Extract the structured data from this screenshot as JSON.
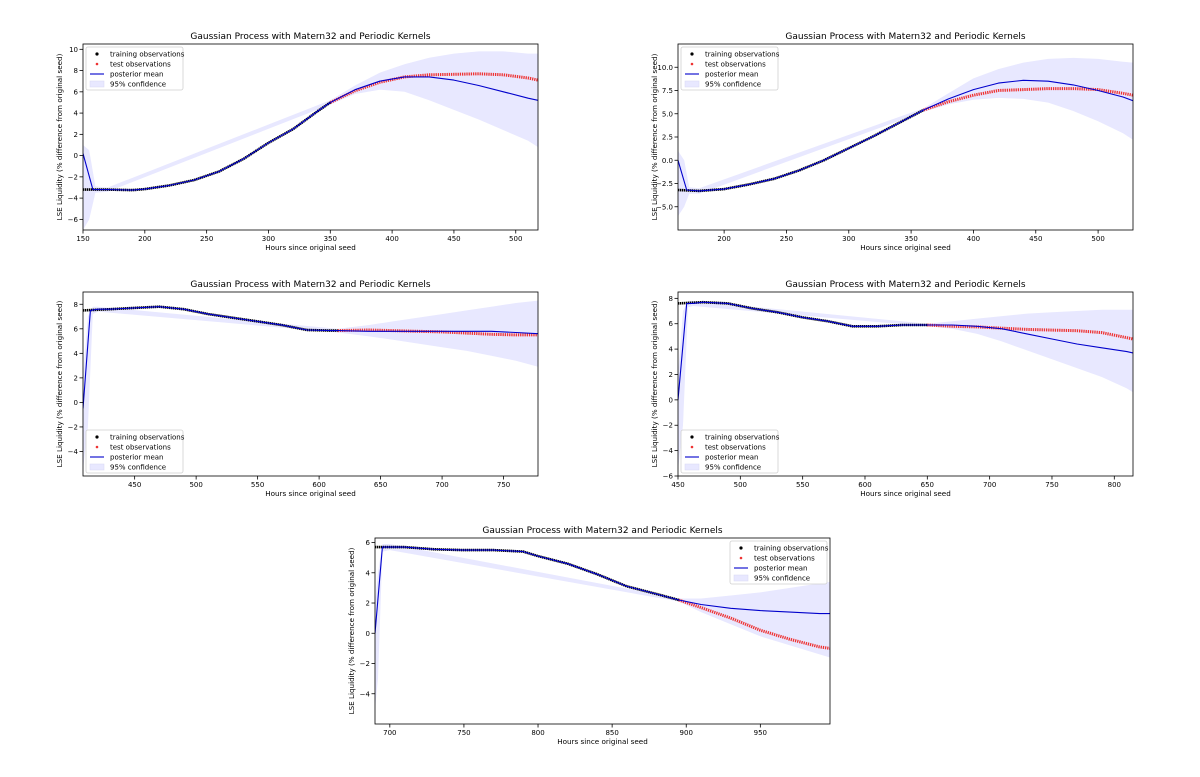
{
  "figure": {
    "background": "#ffffff",
    "colors": {
      "training": "#000000",
      "test": "#ee3333",
      "mean": "#0000cc",
      "confidence": "#e8e8ff"
    }
  },
  "chart_data": [
    {
      "type": "line",
      "title": "Gaussian Process with Matern32 and Periodic Kernels",
      "xlabel": "Hours since original seed",
      "ylabel": "LSE Liquidity (% difference from original seed)",
      "xlim": [
        150,
        518
      ],
      "ylim": [
        -7,
        10.5
      ],
      "xticks": [
        150,
        200,
        250,
        300,
        350,
        400,
        450,
        500
      ],
      "yticks": [
        -6,
        -4,
        -2,
        0,
        2,
        4,
        6,
        8,
        10
      ],
      "ytick_labels": [
        "−6",
        "−4",
        "−2",
        "0",
        "2",
        "4",
        "6",
        "8",
        "10"
      ],
      "legend": [
        "training observations",
        "test observations",
        "posterior mean",
        "95% confidence"
      ],
      "legend_position": "upper-left",
      "grid": false,
      "series": {
        "training": {
          "x": [
            150,
            170,
            190,
            200,
            220,
            240,
            260,
            280,
            300,
            320,
            340,
            350
          ],
          "y": [
            -3.2,
            -3.2,
            -3.25,
            -3.15,
            -2.8,
            -2.3,
            -1.5,
            -0.3,
            1.2,
            2.5,
            4.2,
            5.0
          ]
        },
        "test": {
          "x": [
            350,
            370,
            390,
            410,
            430,
            450,
            470,
            490,
            510,
            518
          ],
          "y": [
            5.0,
            6.1,
            6.9,
            7.4,
            7.6,
            7.65,
            7.7,
            7.6,
            7.3,
            7.1
          ]
        },
        "mean": {
          "x": [
            150,
            158,
            170,
            190,
            200,
            220,
            240,
            260,
            280,
            300,
            320,
            340,
            350,
            370,
            390,
            410,
            430,
            450,
            470,
            490,
            510,
            518
          ],
          "y": [
            0.2,
            -3.2,
            -3.2,
            -3.25,
            -3.15,
            -2.8,
            -2.3,
            -1.5,
            -0.3,
            1.2,
            2.5,
            4.2,
            5.0,
            6.2,
            7.0,
            7.4,
            7.4,
            7.1,
            6.6,
            6.0,
            5.4,
            5.2
          ]
        },
        "band": {
          "x": [
            150,
            155,
            160,
            170,
            350,
            370,
            390,
            410,
            430,
            450,
            470,
            490,
            510,
            518
          ],
          "upper": [
            1.0,
            0.5,
            -2.9,
            -3.0,
            5.2,
            6.6,
            7.8,
            8.6,
            9.2,
            9.6,
            9.8,
            9.8,
            9.6,
            9.6
          ],
          "lower": [
            -7.0,
            -6.0,
            -3.5,
            -3.4,
            4.8,
            5.8,
            6.2,
            6.0,
            5.2,
            4.3,
            3.4,
            2.4,
            1.4,
            0.8
          ]
        }
      }
    },
    {
      "type": "line",
      "title": "Gaussian Process with Matern32 and Periodic Kernels",
      "xlabel": "Hours since original seed",
      "ylabel": "LSE Liquidity (% difference from original seed)",
      "xlim": [
        163,
        528
      ],
      "ylim": [
        -7.5,
        12.5
      ],
      "xticks": [
        200,
        250,
        300,
        350,
        400,
        450,
        500
      ],
      "yticks": [
        -5.0,
        -2.5,
        0.0,
        2.5,
        5.0,
        7.5,
        10.0
      ],
      "ytick_labels": [
        "−5.0",
        "−2.5",
        "0.0",
        "2.5",
        "5.0",
        "7.5",
        "10.0"
      ],
      "legend": [
        "training observations",
        "test observations",
        "posterior mean",
        "95% confidence"
      ],
      "legend_position": "upper-left",
      "grid": false,
      "series": {
        "training": {
          "x": [
            163,
            180,
            200,
            220,
            240,
            260,
            280,
            300,
            320,
            340,
            360
          ],
          "y": [
            -3.2,
            -3.3,
            -3.1,
            -2.6,
            -2.0,
            -1.1,
            0.0,
            1.3,
            2.6,
            4.0,
            5.4
          ]
        },
        "test": {
          "x": [
            360,
            380,
            400,
            420,
            440,
            460,
            480,
            500,
            520,
            528
          ],
          "y": [
            5.4,
            6.3,
            7.0,
            7.5,
            7.6,
            7.7,
            7.7,
            7.6,
            7.2,
            7.0
          ]
        },
        "mean": {
          "x": [
            163,
            170,
            180,
            200,
            220,
            240,
            260,
            280,
            300,
            320,
            340,
            360,
            380,
            400,
            420,
            440,
            460,
            480,
            500,
            520,
            528
          ],
          "y": [
            0.0,
            -3.2,
            -3.3,
            -3.1,
            -2.6,
            -2.0,
            -1.1,
            0.0,
            1.3,
            2.6,
            4.0,
            5.4,
            6.6,
            7.6,
            8.3,
            8.6,
            8.5,
            8.1,
            7.5,
            6.8,
            6.4
          ]
        },
        "band": {
          "x": [
            163,
            168,
            172,
            180,
            360,
            380,
            400,
            420,
            440,
            460,
            480,
            500,
            520,
            528
          ],
          "upper": [
            1.0,
            0.0,
            -2.9,
            -3.0,
            5.6,
            7.2,
            8.8,
            9.8,
            10.5,
            10.9,
            11.0,
            10.9,
            10.6,
            10.5
          ],
          "lower": [
            -6.0,
            -5.0,
            -3.6,
            -3.6,
            5.2,
            6.0,
            6.5,
            6.7,
            6.6,
            6.2,
            5.3,
            4.2,
            2.9,
            2.2
          ]
        }
      }
    },
    {
      "type": "line",
      "title": "Gaussian Process with Matern32 and Periodic Kernels",
      "xlabel": "Hours since original seed",
      "ylabel": "LSE Liquidity (% difference from original seed)",
      "xlim": [
        408,
        778
      ],
      "ylim": [
        -6,
        9
      ],
      "xticks": [
        450,
        500,
        550,
        600,
        650,
        700,
        750
      ],
      "yticks": [
        -4,
        -2,
        0,
        2,
        4,
        6,
        8
      ],
      "ytick_labels": [
        "−4",
        "−2",
        "0",
        "2",
        "4",
        "6",
        "8"
      ],
      "legend": [
        "training observations",
        "test observations",
        "posterior mean",
        "95% confidence"
      ],
      "legend_position": "lower-left",
      "grid": false,
      "series": {
        "training": {
          "x": [
            408,
            430,
            450,
            470,
            490,
            510,
            530,
            550,
            570,
            590,
            610,
            615
          ],
          "y": [
            7.5,
            7.6,
            7.7,
            7.8,
            7.6,
            7.2,
            6.9,
            6.6,
            6.3,
            5.9,
            5.85,
            5.85
          ]
        },
        "test": {
          "x": [
            615,
            640,
            660,
            680,
            700,
            720,
            740,
            760,
            778
          ],
          "y": [
            5.85,
            5.9,
            5.85,
            5.8,
            5.75,
            5.65,
            5.55,
            5.5,
            5.5
          ]
        },
        "mean": {
          "x": [
            408,
            414,
            420,
            430,
            450,
            470,
            490,
            510,
            530,
            550,
            570,
            590,
            610,
            615,
            640,
            660,
            680,
            700,
            720,
            740,
            760,
            778
          ],
          "y": [
            -0.5,
            7.5,
            7.6,
            7.6,
            7.7,
            7.8,
            7.6,
            7.2,
            6.9,
            6.6,
            6.3,
            5.9,
            5.85,
            5.85,
            5.8,
            5.8,
            5.8,
            5.8,
            5.8,
            5.8,
            5.7,
            5.6
          ]
        },
        "band": {
          "x": [
            408,
            412,
            416,
            420,
            615,
            640,
            660,
            680,
            700,
            720,
            740,
            760,
            778
          ],
          "upper": [
            2.0,
            7.0,
            7.8,
            7.8,
            6.0,
            6.3,
            6.6,
            6.9,
            7.2,
            7.5,
            7.8,
            8.1,
            8.3
          ],
          "lower": [
            -5.5,
            -2.0,
            7.2,
            7.4,
            5.7,
            5.4,
            5.1,
            4.8,
            4.5,
            4.2,
            3.8,
            3.4,
            2.9
          ]
        }
      }
    },
    {
      "type": "line",
      "title": "Gaussian Process with Matern32 and Periodic Kernels",
      "xlabel": "Hours since original seed",
      "ylabel": "LSE Liquidity (% difference from original seed)",
      "xlim": [
        450,
        815
      ],
      "ylim": [
        -6,
        8.5
      ],
      "xticks": [
        450,
        500,
        550,
        600,
        650,
        700,
        750,
        800
      ],
      "yticks": [
        -6,
        -4,
        -2,
        0,
        2,
        4,
        6,
        8
      ],
      "ytick_labels": [
        "−6",
        "−4",
        "−2",
        "0",
        "2",
        "4",
        "6",
        "8"
      ],
      "legend": [
        "training observations",
        "test observations",
        "posterior mean",
        "95% confidence"
      ],
      "legend_position": "lower-left",
      "grid": false,
      "series": {
        "training": {
          "x": [
            450,
            470,
            490,
            510,
            530,
            550,
            570,
            590,
            610,
            630,
            650
          ],
          "y": [
            7.6,
            7.7,
            7.6,
            7.2,
            6.9,
            6.5,
            6.2,
            5.8,
            5.8,
            5.9,
            5.9
          ]
        },
        "test": {
          "x": [
            650,
            670,
            690,
            710,
            730,
            750,
            770,
            790,
            810,
            815
          ],
          "y": [
            5.9,
            5.8,
            5.75,
            5.65,
            5.55,
            5.5,
            5.45,
            5.3,
            4.9,
            4.8
          ]
        },
        "mean": {
          "x": [
            450,
            457,
            462,
            470,
            490,
            510,
            530,
            550,
            570,
            590,
            610,
            630,
            650,
            670,
            690,
            710,
            730,
            750,
            770,
            790,
            810,
            815
          ],
          "y": [
            0.0,
            7.6,
            7.6,
            7.7,
            7.6,
            7.2,
            6.9,
            6.5,
            6.2,
            5.8,
            5.8,
            5.9,
            5.9,
            5.9,
            5.8,
            5.6,
            5.2,
            4.8,
            4.4,
            4.1,
            3.8,
            3.7
          ]
        },
        "band": {
          "x": [
            450,
            454,
            458,
            462,
            650,
            670,
            690,
            710,
            730,
            750,
            770,
            790,
            810,
            815
          ],
          "upper": [
            2.0,
            7.0,
            7.8,
            7.8,
            6.0,
            6.2,
            6.4,
            6.6,
            6.8,
            6.9,
            7.0,
            7.1,
            7.1,
            7.1
          ],
          "lower": [
            -5.5,
            -2.0,
            7.3,
            7.4,
            5.8,
            5.6,
            5.2,
            4.6,
            3.9,
            3.2,
            2.5,
            1.8,
            0.9,
            0.6
          ]
        }
      }
    },
    {
      "type": "line",
      "title": "Gaussian Process with Matern32 and Periodic Kernels",
      "xlabel": "Hours since original seed",
      "ylabel": "LSE Liquidity (% difference from original seed)",
      "xlim": [
        690,
        997
      ],
      "ylim": [
        -6,
        6.3
      ],
      "xticks": [
        700,
        750,
        800,
        850,
        900,
        950
      ],
      "yticks": [
        -4,
        -2,
        0,
        2,
        4,
        6
      ],
      "ytick_labels": [
        "−4",
        "−2",
        "0",
        "2",
        "4",
        "6"
      ],
      "legend": [
        "training observations",
        "test observations",
        "posterior mean",
        "95% confidence"
      ],
      "legend_position": "upper-right",
      "grid": false,
      "series": {
        "training": {
          "x": [
            690,
            710,
            730,
            750,
            770,
            790,
            800,
            820,
            840,
            860,
            880,
            895
          ],
          "y": [
            5.7,
            5.7,
            5.55,
            5.5,
            5.5,
            5.4,
            5.1,
            4.6,
            3.9,
            3.1,
            2.6,
            2.2
          ]
        },
        "test": {
          "x": [
            895,
            910,
            930,
            950,
            970,
            990,
            997
          ],
          "y": [
            2.2,
            1.7,
            1.0,
            0.2,
            -0.4,
            -0.9,
            -1.0
          ]
        },
        "mean": {
          "x": [
            690,
            695,
            700,
            710,
            730,
            750,
            770,
            790,
            800,
            820,
            840,
            860,
            880,
            895,
            910,
            930,
            950,
            970,
            990,
            997
          ],
          "y": [
            0.0,
            5.7,
            5.7,
            5.7,
            5.55,
            5.5,
            5.5,
            5.4,
            5.1,
            4.6,
            3.9,
            3.1,
            2.6,
            2.2,
            1.9,
            1.65,
            1.5,
            1.4,
            1.3,
            1.3
          ]
        },
        "band": {
          "x": [
            690,
            692,
            695,
            700,
            895,
            910,
            930,
            950,
            970,
            990,
            997
          ],
          "upper": [
            2.0,
            4.0,
            5.9,
            5.9,
            2.3,
            2.3,
            2.5,
            2.7,
            3.0,
            3.3,
            3.4
          ],
          "lower": [
            -5.0,
            -3.0,
            5.4,
            5.5,
            2.1,
            1.4,
            0.6,
            -0.2,
            -0.8,
            -1.4,
            -1.6
          ]
        }
      }
    }
  ]
}
